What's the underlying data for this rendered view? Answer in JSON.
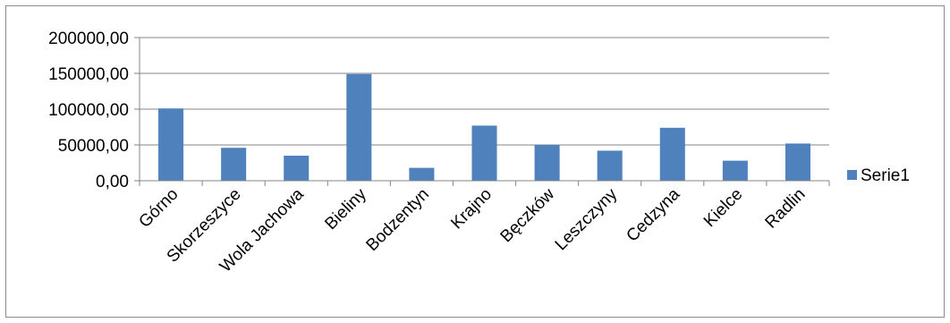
{
  "chart_data": {
    "type": "bar",
    "categories": [
      "Górno",
      "Skorzeszyce",
      "Wola Jachowa",
      "Bieliny",
      "Bodzentyn",
      "Krajno",
      "Bęczków",
      "Leszczyny",
      "Cedzyna",
      "Kielce",
      "Radlin"
    ],
    "series": [
      {
        "name": "Serie1",
        "values": [
          101000,
          46000,
          35000,
          149000,
          18000,
          77000,
          50000,
          42000,
          74000,
          28000,
          52000
        ]
      }
    ],
    "yticks": [
      "0,00",
      "50000,00",
      "100000,00",
      "150000,00",
      "200000,00"
    ],
    "ylim": [
      0,
      200000
    ],
    "grid": true,
    "legend_position": "right",
    "title": "",
    "xlabel": "",
    "ylabel": "",
    "colors": {
      "bar": "#4f81bd",
      "grid": "#868686",
      "axis": "#868686",
      "frame": "#8c8c8c"
    }
  }
}
